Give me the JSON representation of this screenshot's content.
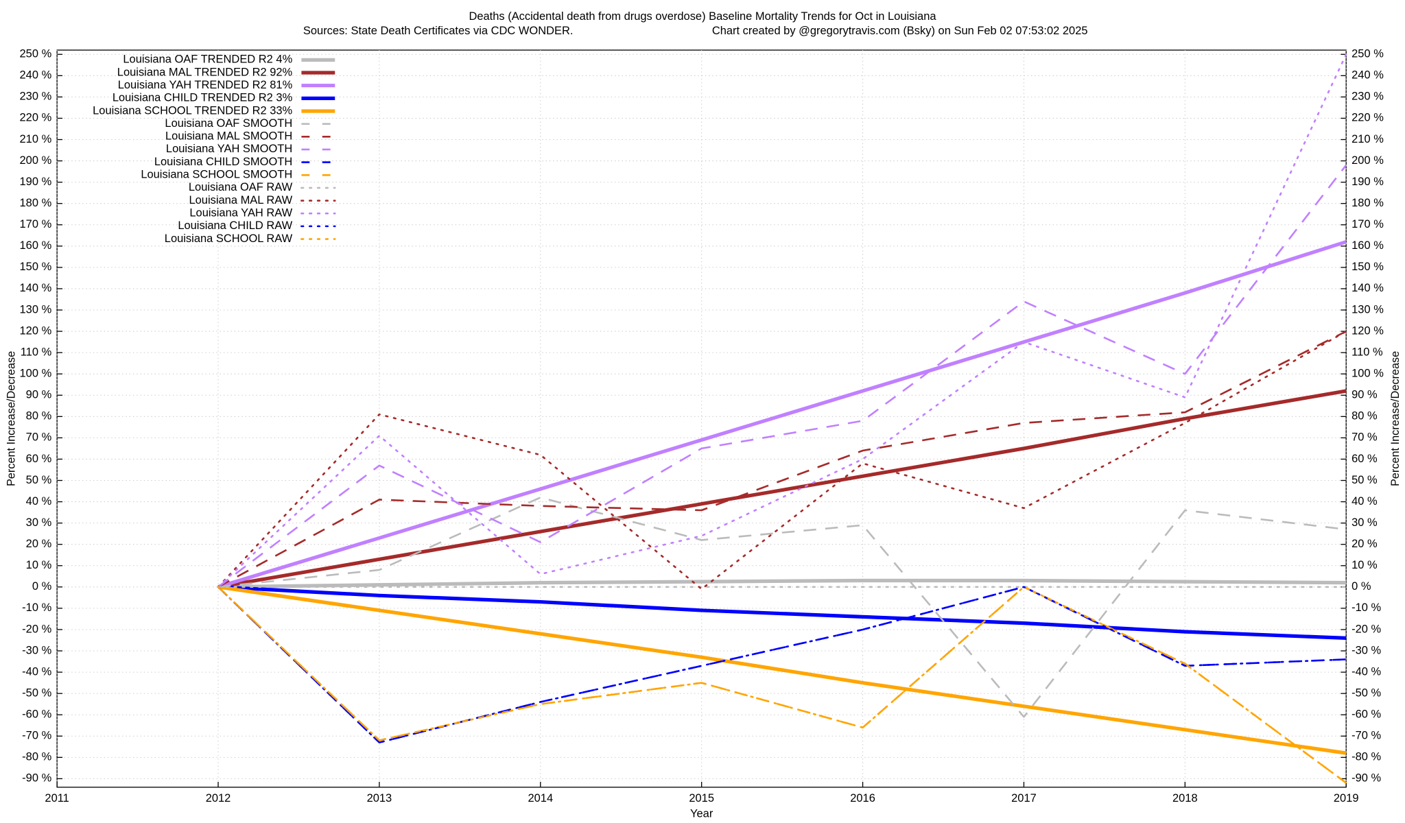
{
  "chart_data": {
    "type": "line",
    "title": "Deaths (Accidental death from drugs overdose)  Baseline Mortality Trends for Oct in Louisiana",
    "subtitle": "Sources: State Death Certificates via CDC WONDER.",
    "credit": "Chart created by @gregorytravis.com (Bsky) on Sun Feb 02 07:53:02 2025",
    "xlabel": "Year",
    "ylabel": "Percent Increase/Decrease",
    "y2label": "Percent Increase/Decrease",
    "x": [
      2012,
      2013,
      2014,
      2015,
      2016,
      2017,
      2018,
      2019
    ],
    "xlim": [
      2011,
      2019
    ],
    "xticks": [
      2011,
      2012,
      2013,
      2014,
      2015,
      2016,
      2017,
      2018,
      2019
    ],
    "ylim": [
      -94,
      252
    ],
    "yticks": [
      {
        "value": 250,
        "label": "250 %"
      },
      {
        "value": 240,
        "label": "240 %"
      },
      {
        "value": 230,
        "label": "230 %"
      },
      {
        "value": 220,
        "label": "220 %"
      },
      {
        "value": 210,
        "label": "210 %"
      },
      {
        "value": 200,
        "label": "200 %"
      },
      {
        "value": 190,
        "label": "190 %"
      },
      {
        "value": 180,
        "label": "180 %"
      },
      {
        "value": 170,
        "label": "170 %"
      },
      {
        "value": 160,
        "label": "160 %"
      },
      {
        "value": 150,
        "label": "150 %"
      },
      {
        "value": 140,
        "label": "140 %"
      },
      {
        "value": 130,
        "label": "130 %"
      },
      {
        "value": 120,
        "label": "120 %"
      },
      {
        "value": 110,
        "label": "110 %"
      },
      {
        "value": 100,
        "label": "100 %"
      },
      {
        "value": 90,
        "label": "90 %"
      },
      {
        "value": 80,
        "label": "80 %"
      },
      {
        "value": 70,
        "label": "70 %"
      },
      {
        "value": 60,
        "label": "60 %"
      },
      {
        "value": 50,
        "label": "50 %"
      },
      {
        "value": 40,
        "label": "40 %"
      },
      {
        "value": 30,
        "label": "30 %"
      },
      {
        "value": 20,
        "label": "20 %"
      },
      {
        "value": 10,
        "label": "10 %"
      },
      {
        "value": 0,
        "label": "0 %"
      },
      {
        "value": -10,
        "label": "-10 %"
      },
      {
        "value": -20,
        "label": "-20 %"
      },
      {
        "value": -30,
        "label": "-30 %"
      },
      {
        "value": -40,
        "label": "-40 %"
      },
      {
        "value": -50,
        "label": "-50 %"
      },
      {
        "value": -60,
        "label": "-60 %"
      },
      {
        "value": -70,
        "label": "-70 %"
      },
      {
        "value": -80,
        "label": "-80 %"
      },
      {
        "value": -90,
        "label": "-90 %"
      }
    ],
    "y2lim": [
      -94,
      252
    ],
    "y2ticks": [
      {
        "value": 250,
        "label": "250 %"
      },
      {
        "value": 240,
        "label": "240 %"
      },
      {
        "value": 230,
        "label": "230 %"
      },
      {
        "value": 220,
        "label": "220 %"
      },
      {
        "value": 210,
        "label": "210 %"
      },
      {
        "value": 200,
        "label": "200 %"
      },
      {
        "value": 190,
        "label": "190 %"
      },
      {
        "value": 180,
        "label": "180 %"
      },
      {
        "value": 170,
        "label": "170 %"
      },
      {
        "value": 160,
        "label": "160 %"
      },
      {
        "value": 150,
        "label": "150 %"
      },
      {
        "value": 140,
        "label": "140 %"
      },
      {
        "value": 130,
        "label": "130 %"
      },
      {
        "value": 120,
        "label": "120 %"
      },
      {
        "value": 110,
        "label": "110 %"
      },
      {
        "value": 100,
        "label": "100 %"
      },
      {
        "value": 90,
        "label": "90 %"
      },
      {
        "value": 80,
        "label": "80 %"
      },
      {
        "value": 70,
        "label": "70 %"
      },
      {
        "value": 60,
        "label": "60 %"
      },
      {
        "value": 50,
        "label": "50 %"
      },
      {
        "value": 40,
        "label": "40 %"
      },
      {
        "value": 30,
        "label": "30 %"
      },
      {
        "value": 20,
        "label": "20 %"
      },
      {
        "value": 10,
        "label": "10 %"
      },
      {
        "value": 0,
        "label": "0 %"
      },
      {
        "value": -10,
        "label": "-10 %"
      },
      {
        "value": -20,
        "label": "-20 %"
      },
      {
        "value": -30,
        "label": "-30 %"
      },
      {
        "value": -40,
        "label": "-40 %"
      },
      {
        "value": -50,
        "label": "-50 %"
      },
      {
        "value": -60,
        "label": "-60 %"
      },
      {
        "value": -70,
        "label": "-70 %"
      },
      {
        "value": -80,
        "label": "-80 %"
      },
      {
        "value": -90,
        "label": "-90 %"
      }
    ],
    "grid": true,
    "legend": "top-left",
    "series": [
      {
        "name": "Louisiana OAF TRENDED R2  4%",
        "color": "#bbbbbb",
        "style": "solid",
        "values": [
          0,
          1,
          2,
          2.5,
          3,
          3,
          2.5,
          2
        ]
      },
      {
        "name": "Louisiana MAL TRENDED R2  92%",
        "color": "#a52a2a",
        "style": "solid",
        "values": [
          0,
          13,
          26,
          39,
          52,
          65,
          79,
          92
        ]
      },
      {
        "name": "Louisiana YAH TRENDED R2  81%",
        "color": "#c080ff",
        "style": "solid",
        "values": [
          0,
          23,
          46,
          69,
          92,
          115,
          138,
          162
        ]
      },
      {
        "name": "Louisiana CHILD TRENDED R2  3%",
        "color": "#0000ff",
        "style": "solid",
        "values": [
          0,
          -4,
          -7,
          -11,
          -14,
          -17,
          -21,
          -24
        ]
      },
      {
        "name": "Louisiana SCHOOL TRENDED R2  33%",
        "color": "#ffa500",
        "style": "solid",
        "values": [
          0,
          -11,
          -22,
          -33,
          -45,
          -56,
          -67,
          -78
        ]
      },
      {
        "name": "Louisiana OAF SMOOTH",
        "color": "#bbbbbb",
        "style": "dashed",
        "values": [
          0,
          8,
          42,
          22,
          29,
          -61,
          36,
          27
        ]
      },
      {
        "name": "Louisiana MAL SMOOTH",
        "color": "#a52a2a",
        "style": "dashed",
        "values": [
          0,
          41,
          38,
          36,
          64,
          77,
          82,
          120
        ]
      },
      {
        "name": "Louisiana YAH SMOOTH",
        "color": "#c080ff",
        "style": "dashed",
        "values": [
          0,
          57,
          21,
          65,
          78,
          134,
          100,
          198
        ]
      },
      {
        "name": "Louisiana CHILD SMOOTH",
        "color": "#0000ff",
        "style": "dashed",
        "values": [
          0,
          -73,
          -54,
          -37,
          -20,
          0,
          -37,
          -34
        ]
      },
      {
        "name": "Louisiana SCHOOL SMOOTH",
        "color": "#ffa500",
        "style": "dashed",
        "values": [
          0,
          -72,
          -55,
          -45,
          -66,
          0,
          -36,
          -92
        ]
      },
      {
        "name": "Louisiana OAF RAW",
        "color": "#bbbbbb",
        "style": "dotted",
        "values": [
          0,
          0,
          0,
          0,
          0,
          0,
          0,
          0
        ]
      },
      {
        "name": "Louisiana MAL RAW",
        "color": "#a52a2a",
        "style": "dotted",
        "values": [
          0,
          81,
          62,
          -1,
          58,
          37,
          77,
          120
        ]
      },
      {
        "name": "Louisiana YAH RAW",
        "color": "#c080ff",
        "style": "dotted",
        "values": [
          0,
          71,
          6,
          24,
          60,
          115,
          89,
          250
        ]
      },
      {
        "name": "Louisiana CHILD RAW",
        "color": "#0000ff",
        "style": "dotted",
        "values": [
          0,
          -73,
          -54,
          -37,
          -20,
          0,
          -37,
          -34
        ]
      },
      {
        "name": "Louisiana SCHOOL RAW",
        "color": "#ffa500",
        "style": "dotted",
        "values": [
          0,
          -72,
          -55,
          -45,
          -66,
          0,
          -36,
          -92
        ]
      }
    ]
  }
}
